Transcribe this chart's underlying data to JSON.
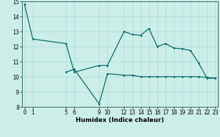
{
  "xlabel": "Humidex (Indice chaleur)",
  "bg_color": "#cceee8",
  "grid_color": "#aadddd",
  "line_color": "#006666",
  "ylim": [
    8,
    15
  ],
  "xlim": [
    -0.3,
    23.3
  ],
  "yticks": [
    8,
    9,
    10,
    11,
    12,
    13,
    14,
    15
  ],
  "xticks": [
    0,
    1,
    5,
    6,
    9,
    10,
    12,
    13,
    14,
    15,
    16,
    17,
    18,
    19,
    20,
    21,
    22,
    23
  ],
  "line1_x": [
    0,
    1,
    5,
    6,
    9,
    10,
    12,
    13,
    14,
    15,
    16,
    17,
    18,
    19,
    20,
    21,
    22,
    23
  ],
  "line1_y": [
    14.8,
    12.5,
    12.2,
    10.3,
    10.75,
    10.75,
    13.0,
    12.8,
    12.75,
    13.2,
    12.0,
    12.2,
    11.9,
    11.85,
    11.75,
    10.9,
    9.9,
    9.9
  ],
  "line2_x": [
    5,
    6,
    9,
    10,
    12,
    13,
    14,
    15,
    16,
    17,
    18,
    19,
    20,
    21,
    22,
    23
  ],
  "line2_y": [
    10.3,
    10.5,
    8.2,
    10.2,
    10.1,
    10.1,
    10.0,
    10.0,
    10.0,
    10.0,
    10.0,
    10.0,
    10.0,
    10.0,
    9.95,
    9.9
  ]
}
